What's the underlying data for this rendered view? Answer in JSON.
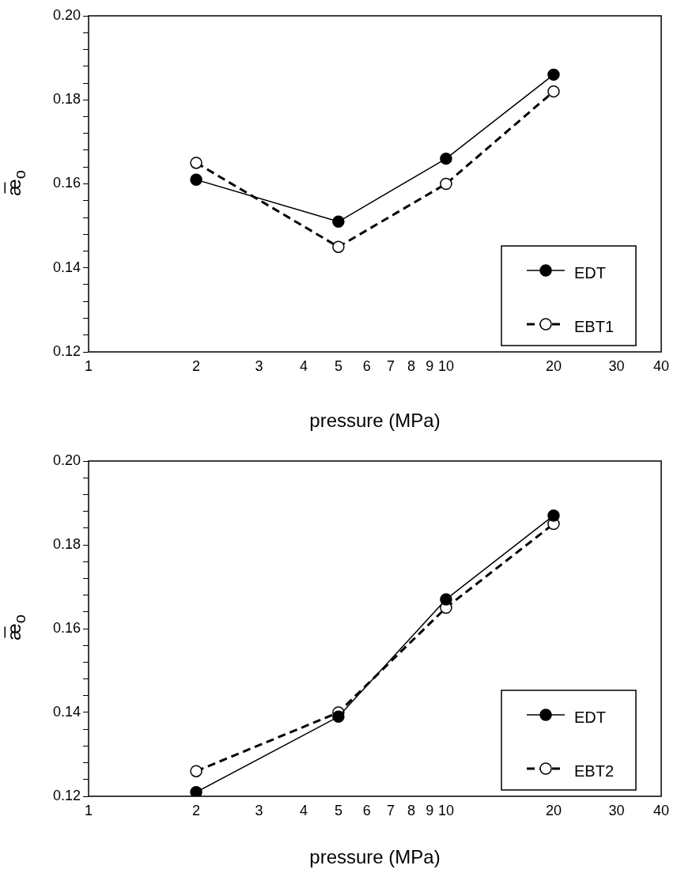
{
  "chart_data": [
    {
      "type": "line",
      "xlabel": "pressure (MPa)",
      "ylabel": "æ̅$_{o}$",
      "log": "x",
      "x": [
        2,
        5,
        10,
        20
      ],
      "xlim": [
        1,
        40
      ],
      "xticks": [
        1,
        2,
        3,
        4,
        5,
        6,
        7,
        8,
        9,
        10,
        20,
        30,
        40
      ],
      "ylim": [
        0.12,
        0.2
      ],
      "yticks": [
        0.12,
        {
          "value": 0.124,
          "label": null
        },
        {
          "value": 0.128,
          "label": null
        },
        {
          "value": 0.132,
          "label": null
        },
        {
          "value": 0.136,
          "label": null
        },
        0.14,
        {
          "value": 0.144,
          "label": null
        },
        {
          "value": 0.148,
          "label": null
        },
        {
          "value": 0.152,
          "label": null
        },
        {
          "value": 0.156,
          "label": null
        },
        0.16,
        {
          "value": 0.164,
          "label": null
        },
        {
          "value": 0.168,
          "label": null
        },
        {
          "value": 0.172,
          "label": null
        },
        {
          "value": 0.176,
          "label": null
        },
        0.18,
        {
          "value": 0.184,
          "label": null
        },
        {
          "value": 0.188,
          "label": null
        },
        {
          "value": 0.192,
          "label": null
        },
        {
          "value": 0.196,
          "label": null
        },
        {
          "value": 0.2,
          "label": "0.20"
        }
      ],
      "grid": false,
      "legend": "bottom right",
      "marker": "circle",
      "series": [
        {
          "name": "EDT",
          "color": "#000000",
          "line_style": "solid",
          "values": [
            0.161,
            0.151,
            0.166,
            0.186
          ]
        },
        {
          "name": "EBT1",
          "color": "#000000",
          "line_style": "dashed",
          "values": [
            0.165,
            0.145,
            0.16,
            0.182
          ]
        }
      ]
    },
    {
      "type": "line",
      "xlabel": "pressure (MPa)",
      "ylabel": "æ̅$_{o}$",
      "log": "x",
      "x": [
        2,
        5,
        10,
        20
      ],
      "xlim": [
        1,
        40
      ],
      "xticks": [
        1,
        2,
        3,
        4,
        5,
        6,
        7,
        8,
        9,
        10,
        20,
        30,
        40
      ],
      "ylim": [
        0.12,
        0.2
      ],
      "yticks": [
        0.12,
        {
          "value": 0.124,
          "label": null
        },
        {
          "value": 0.128,
          "label": null
        },
        {
          "value": 0.132,
          "label": null
        },
        {
          "value": 0.136,
          "label": null
        },
        0.14,
        {
          "value": 0.144,
          "label": null
        },
        {
          "value": 0.148,
          "label": null
        },
        {
          "value": 0.152,
          "label": null
        },
        {
          "value": 0.156,
          "label": null
        },
        0.16,
        {
          "value": 0.164,
          "label": null
        },
        {
          "value": 0.168,
          "label": null
        },
        {
          "value": 0.172,
          "label": null
        },
        {
          "value": 0.176,
          "label": null
        },
        0.18,
        {
          "value": 0.184,
          "label": null
        },
        {
          "value": 0.188,
          "label": null
        },
        {
          "value": 0.192,
          "label": null
        },
        {
          "value": 0.196,
          "label": null
        },
        {
          "value": 0.2,
          "label": "0.20"
        }
      ],
      "grid": false,
      "legend": "bottom right",
      "marker": "circle",
      "series": [
        {
          "name": "EDT",
          "color": "#000000",
          "line_style": "solid",
          "values": [
            0.121,
            0.139,
            0.167,
            0.187
          ]
        },
        {
          "name": "EBT2",
          "color": "#000000",
          "line_style": "dashed",
          "values": [
            0.126,
            0.14,
            0.165,
            0.185
          ]
        }
      ]
    }
  ]
}
